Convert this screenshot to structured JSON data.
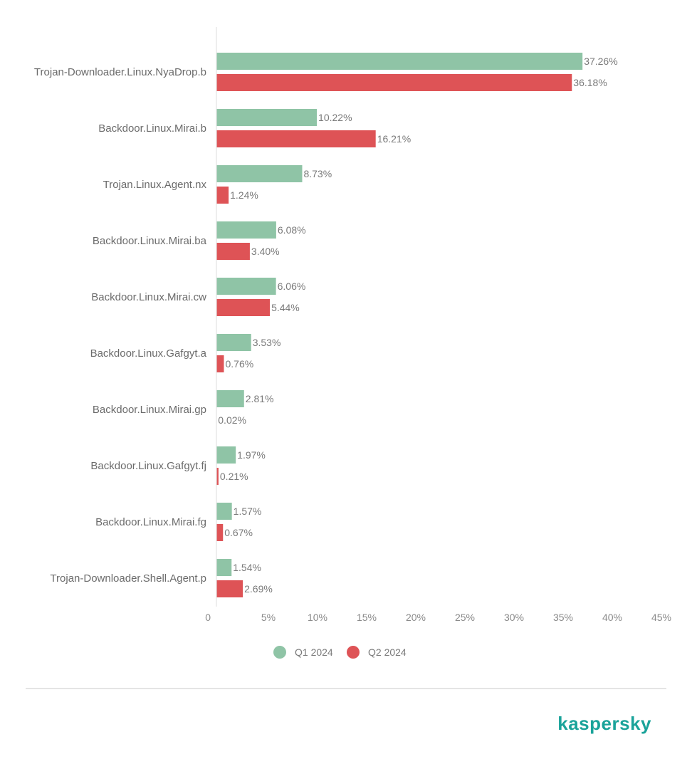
{
  "chart_data": {
    "type": "bar",
    "orientation": "horizontal",
    "categories": [
      "Trojan-Downloader.Linux.NyaDrop.b",
      "Backdoor.Linux.Mirai.b",
      "Trojan.Linux.Agent.nx",
      "Backdoor.Linux.Mirai.ba",
      "Backdoor.Linux.Mirai.cw",
      "Backdoor.Linux.Gafgyt.a",
      "Backdoor.Linux.Mirai.gp",
      "Backdoor.Linux.Gafgyt.fj",
      "Backdoor.Linux.Mirai.fg",
      "Trojan-Downloader.Shell.Agent.p"
    ],
    "series": [
      {
        "name": "Q1 2024",
        "color": "#8fc4a6",
        "values": [
          37.26,
          10.22,
          8.73,
          6.08,
          6.06,
          3.53,
          2.81,
          1.97,
          1.57,
          1.54
        ],
        "labels": [
          "37.26%",
          "10.22%",
          "8.73%",
          "6.08%",
          "6.06%",
          "3.53%",
          "2.81%",
          "1.97%",
          "1.57%",
          "1.54%"
        ]
      },
      {
        "name": "Q2 2024",
        "color": "#de5356",
        "values": [
          36.18,
          16.21,
          1.24,
          3.4,
          5.44,
          0.76,
          0.02,
          0.21,
          0.67,
          2.69
        ],
        "labels": [
          "36.18%",
          "16.21%",
          "1.24%",
          "3.40%",
          "5.44%",
          "0.76%",
          "0.02%",
          "0.21%",
          "0.67%",
          "2.69%"
        ]
      }
    ],
    "xlim": [
      0,
      45
    ],
    "x_ticks": [
      0,
      5,
      10,
      15,
      20,
      25,
      30,
      35,
      40,
      45
    ],
    "x_tick_labels": [
      "0",
      "5%",
      "10%",
      "15%",
      "20%",
      "25%",
      "30%",
      "35%",
      "40%",
      "45%"
    ],
    "grid": false,
    "legend": "bottom-center"
  },
  "brand": {
    "logo_text": "kaspersky",
    "logo_color": "#1aa39a"
  }
}
